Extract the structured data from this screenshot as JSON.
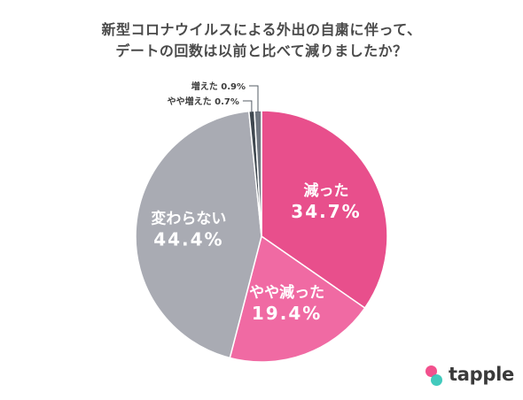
{
  "title_lines": [
    "新型コロナウイルスによる外出の自粛に伴って、",
    "デートの回数は以前と比べて減りましたか？"
  ],
  "logo": {
    "text": "tapple",
    "dot_colors": [
      "#f2508d",
      "#2ec4b6"
    ]
  },
  "chart_data": {
    "type": "pie",
    "title": "新型コロナウイルスによる外出の自粛に伴って、デートの回数は以前と比べて減りましたか？",
    "start_angle_deg": 0,
    "direction": "clockwise",
    "slices": [
      {
        "label": "減った",
        "value": 34.7,
        "display": "34.7%",
        "color": "#e84f8c",
        "label_placement": "inside"
      },
      {
        "label": "やや減った",
        "value": 19.4,
        "display": "19.4%",
        "color": "#f06aa3",
        "label_placement": "inside"
      },
      {
        "label": "変わらない",
        "value": 44.4,
        "display": "44.4%",
        "color": "#a9abb3",
        "label_placement": "inside"
      },
      {
        "label": "やや増えた",
        "value": 0.7,
        "display": "0.7%",
        "color": "#3f4850",
        "label_placement": "outside"
      },
      {
        "label": "増えた",
        "value": 0.9,
        "display": "0.9%",
        "color": "#707781",
        "label_placement": "outside"
      }
    ]
  }
}
